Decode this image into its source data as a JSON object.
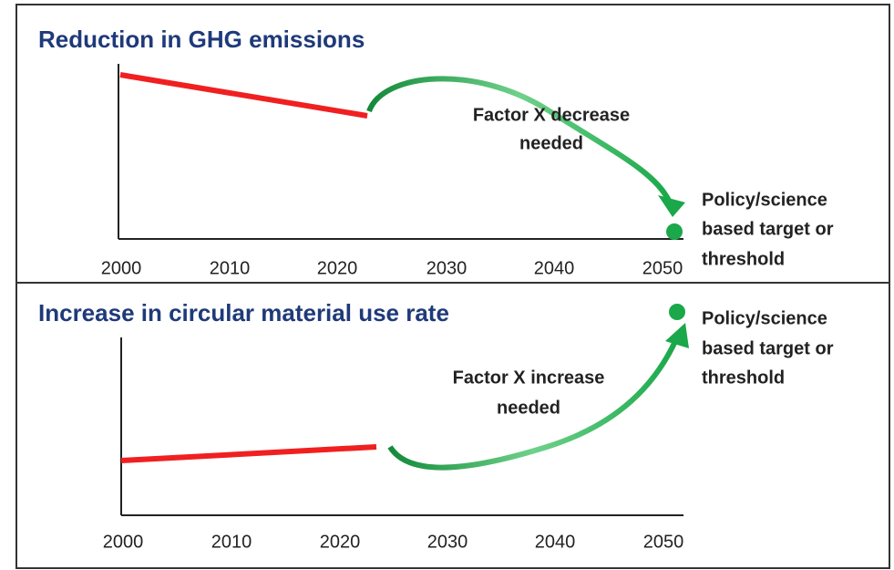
{
  "panels": [
    {
      "title": "Reduction in GHG emissions",
      "years": [
        "2000",
        "2010",
        "2020",
        "2030",
        "2040",
        "2050"
      ],
      "arrow_label": [
        "Factor X decrease",
        "needed"
      ],
      "target_label": [
        "Policy/science",
        "based target or",
        "threshold"
      ]
    },
    {
      "title": "Increase in circular material use rate",
      "years": [
        "2000",
        "2010",
        "2020",
        "2030",
        "2040",
        "2050"
      ],
      "arrow_label": [
        "Factor X increase",
        "needed"
      ],
      "target_label": [
        "Policy/science",
        "based target or",
        "threshold"
      ]
    }
  ]
}
